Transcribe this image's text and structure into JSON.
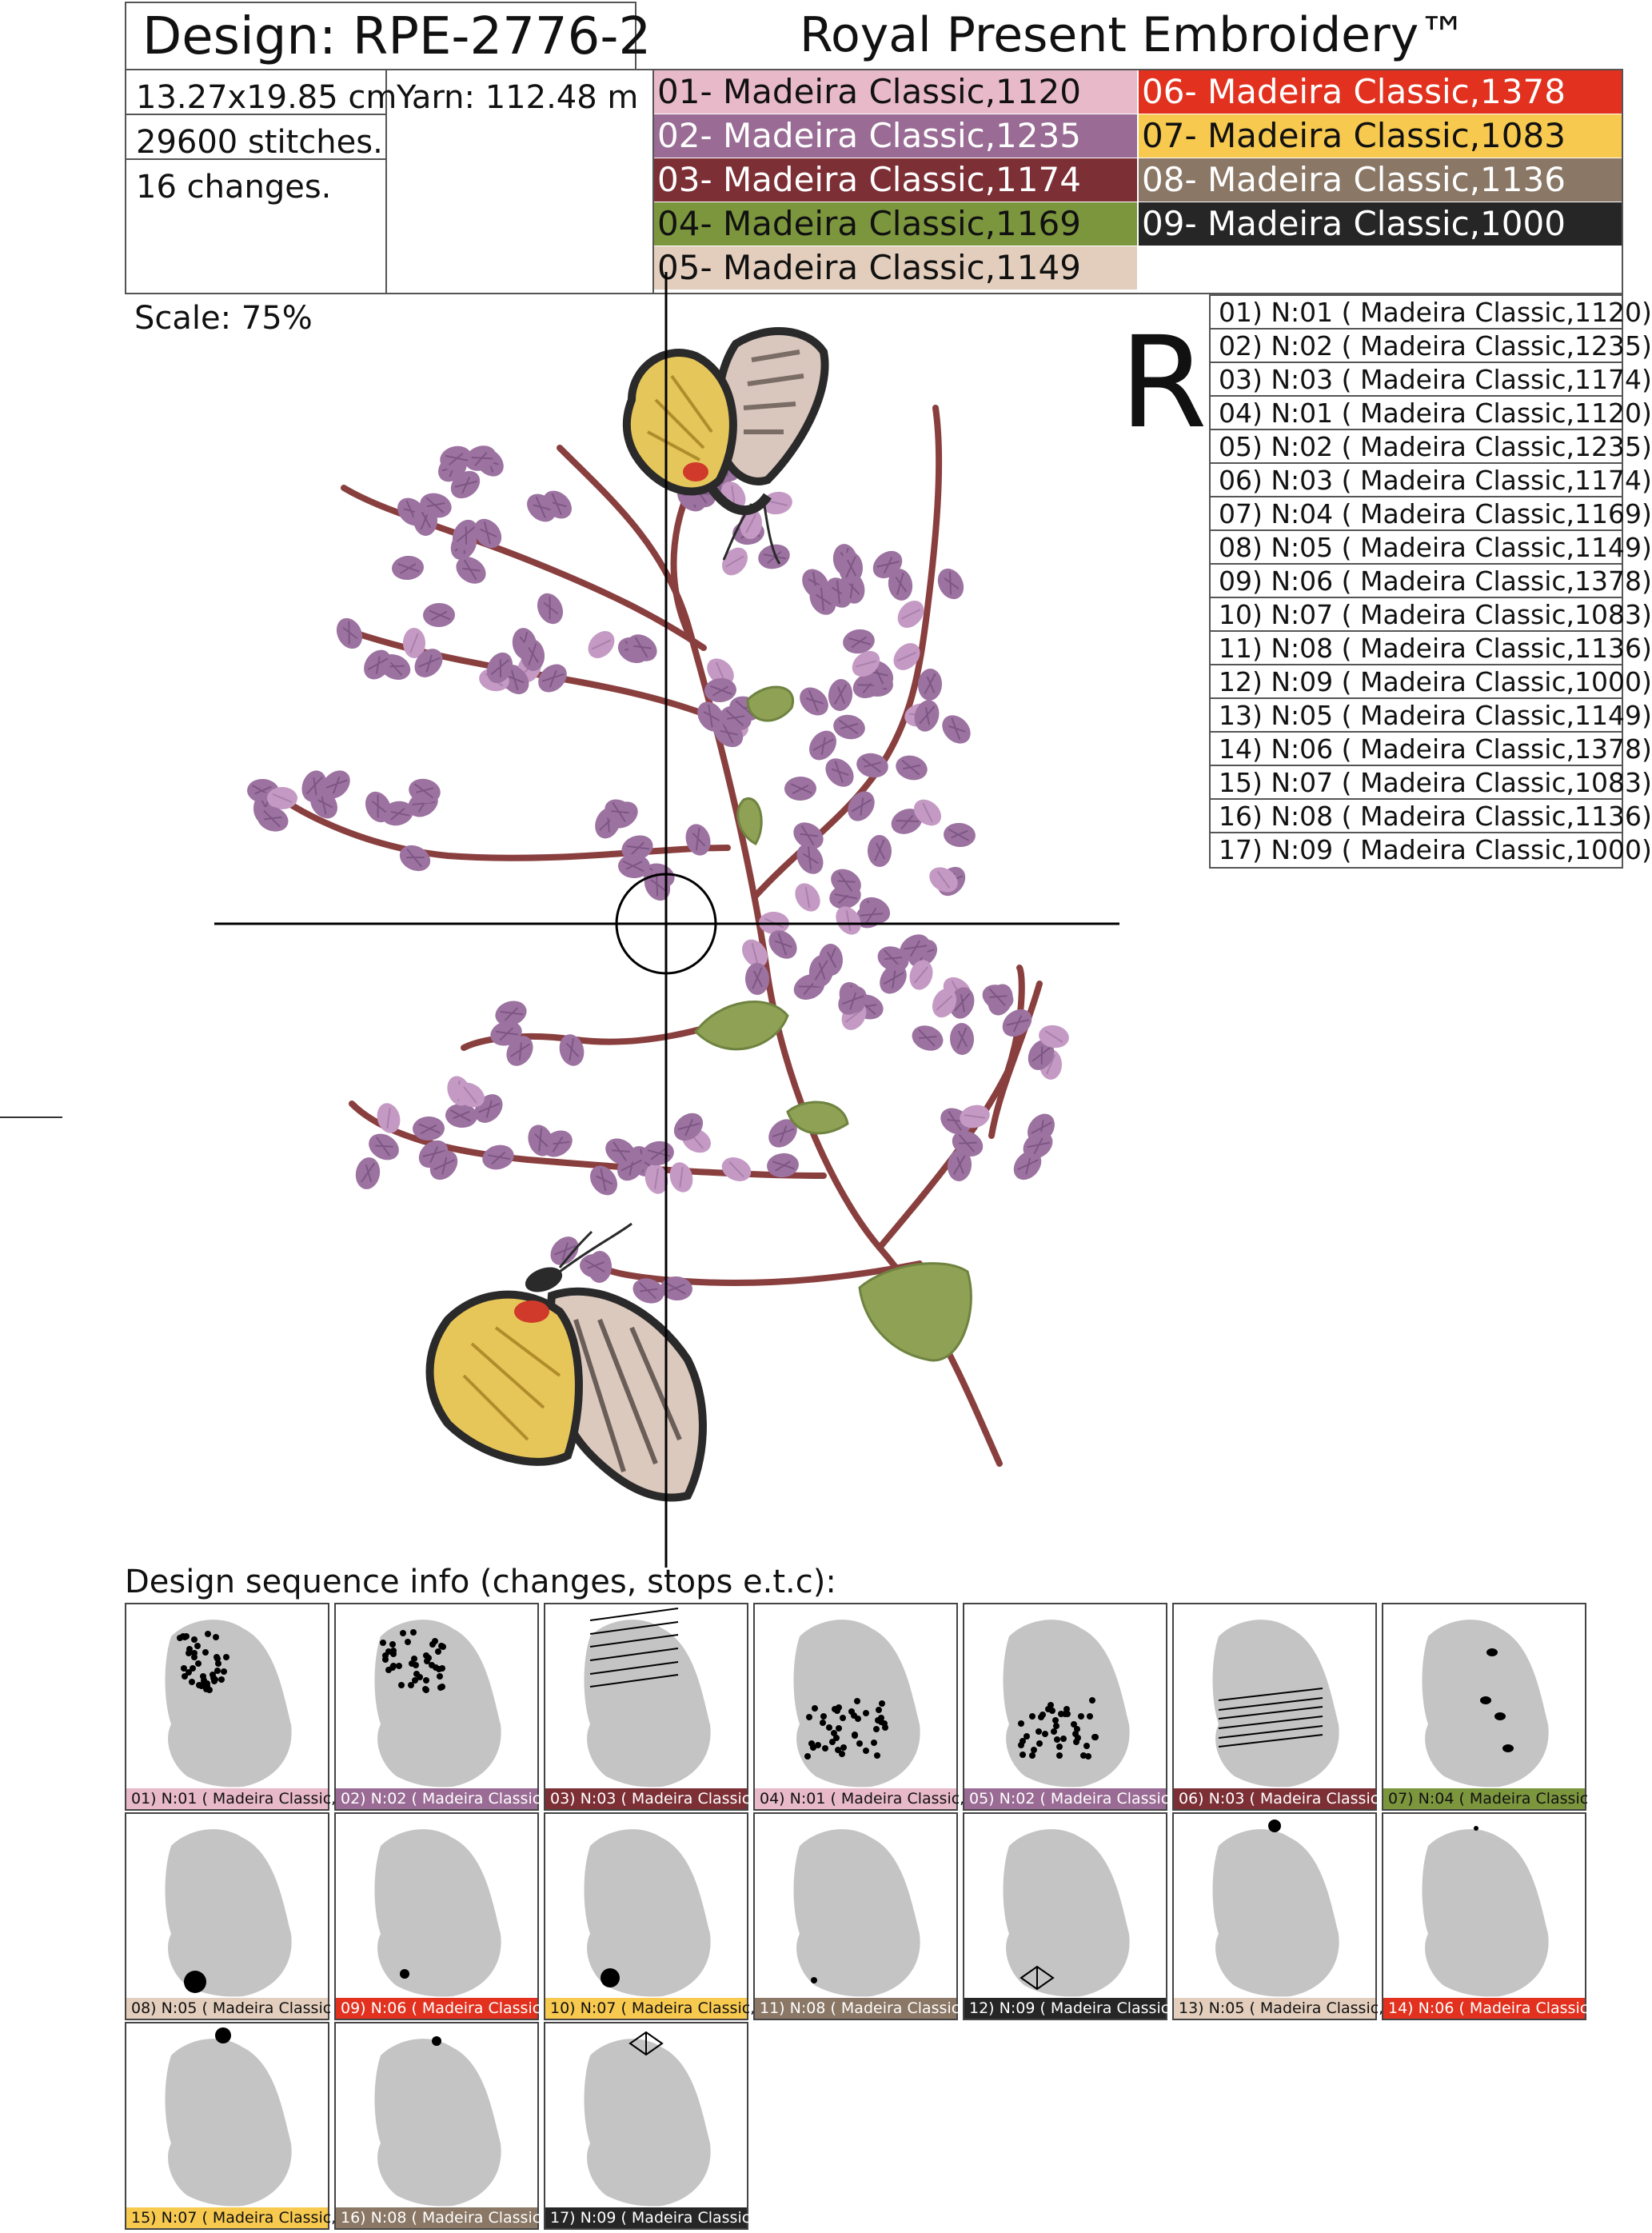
{
  "header": {
    "design": "Design: RPE-2776-2",
    "brand": "Royal Present Embroidery™",
    "size": "13.27x19.85 cm",
    "yarn": "Yarn: 112.48 m",
    "stitches": "29600 stitches.",
    "changes": "16 changes.",
    "scale": "Scale: 75%",
    "rotation_mark": "R"
  },
  "threads": [
    {
      "label": "01- Madeira Classic,1120",
      "color": "#e8b9c9",
      "text_color": "#111111"
    },
    {
      "label": "02- Madeira Classic,1235",
      "color": "#9a6b94",
      "text_color": "#ffffff"
    },
    {
      "label": "03- Madeira Classic,1174",
      "color": "#7c2f35",
      "text_color": "#ffffff"
    },
    {
      "label": "04- Madeira Classic,1169",
      "color": "#7c963e",
      "text_color": "#111111"
    },
    {
      "label": "05- Madeira Classic,1149",
      "color": "#e3cebd",
      "text_color": "#111111"
    },
    {
      "label": "06- Madeira Classic,1378",
      "color": "#e2311e",
      "text_color": "#ffffff"
    },
    {
      "label": "07- Madeira Classic,1083",
      "color": "#f7c94f",
      "text_color": "#111111"
    },
    {
      "label": "08- Madeira Classic,1136",
      "color": "#8a7765",
      "text_color": "#ffffff"
    },
    {
      "label": "09- Madeira Classic,1000",
      "color": "#262626",
      "text_color": "#ffffff"
    }
  ],
  "sequence": [
    {
      "label": "01) N:01 ( Madeira Classic,1120)",
      "short": "01) N:01 ( Madeira Classic,1",
      "color": "#e8b9c9",
      "text_color": "#111111"
    },
    {
      "label": "02) N:02 ( Madeira Classic,1235)",
      "short": "02) N:02 ( Madeira Classic",
      "color": "#9a6b94",
      "text_color": "#ffffff"
    },
    {
      "label": "03) N:03 ( Madeira Classic,1174)",
      "short": "03) N:03 ( Madeira Classic",
      "color": "#7c2f35",
      "text_color": "#ffffff"
    },
    {
      "label": "04) N:01 ( Madeira Classic,1120)",
      "short": "04) N:01 ( Madeira Classic,",
      "color": "#e8b9c9",
      "text_color": "#111111"
    },
    {
      "label": "05) N:02 ( Madeira Classic,1235)",
      "short": "05) N:02 ( Madeira Classic",
      "color": "#9a6b94",
      "text_color": "#ffffff"
    },
    {
      "label": "06) N:03 ( Madeira Classic,1174)",
      "short": "06) N:03 ( Madeira Classic",
      "color": "#7c2f35",
      "text_color": "#ffffff"
    },
    {
      "label": "07) N:04 ( Madeira Classic,1169)",
      "short": "07) N:04 ( Madeira Classic",
      "color": "#7c963e",
      "text_color": "#111111"
    },
    {
      "label": "08) N:05 ( Madeira Classic,1149)",
      "short": "08) N:05 ( Madeira Classic",
      "color": "#e3cebd",
      "text_color": "#111111"
    },
    {
      "label": "09) N:06 ( Madeira Classic,1378)",
      "short": "09) N:06 ( Madeira Classic",
      "color": "#e2311e",
      "text_color": "#ffffff"
    },
    {
      "label": "10) N:07 ( Madeira Classic,1083)",
      "short": "10) N:07 ( Madeira Classic,",
      "color": "#f7c94f",
      "text_color": "#111111"
    },
    {
      "label": "11) N:08 ( Madeira Classic,1136)",
      "short": "11) N:08 ( Madeira Classic,",
      "color": "#8a7765",
      "text_color": "#ffffff"
    },
    {
      "label": "12) N:09 ( Madeira Classic,1000)",
      "short": "12) N:09 ( Madeira Classic,",
      "color": "#262626",
      "text_color": "#ffffff"
    },
    {
      "label": "13) N:05 ( Madeira Classic,1149)",
      "short": "13) N:05 ( Madeira Classic,",
      "color": "#e3cebd",
      "text_color": "#111111"
    },
    {
      "label": "14) N:06 ( Madeira Classic,1378)",
      "short": "14) N:06 ( Madeira Classic,",
      "color": "#e2311e",
      "text_color": "#ffffff"
    },
    {
      "label": "15) N:07 ( Madeira Classic,1083)",
      "short": "15) N:07 ( Madeira Classic,",
      "color": "#f7c94f",
      "text_color": "#111111"
    },
    {
      "label": "16) N:08 ( Madeira Classic,1136)",
      "short": "16) N:08 ( Madeira Classic,",
      "color": "#8a7765",
      "text_color": "#ffffff"
    },
    {
      "label": "17) N:09 ( Madeira Classic,1000)",
      "short": "17) N:09 ( Madeira Classic,",
      "color": "#262626",
      "text_color": "#ffffff"
    }
  ],
  "sequence_title": "Design sequence info (changes, stops e.t.c):"
}
